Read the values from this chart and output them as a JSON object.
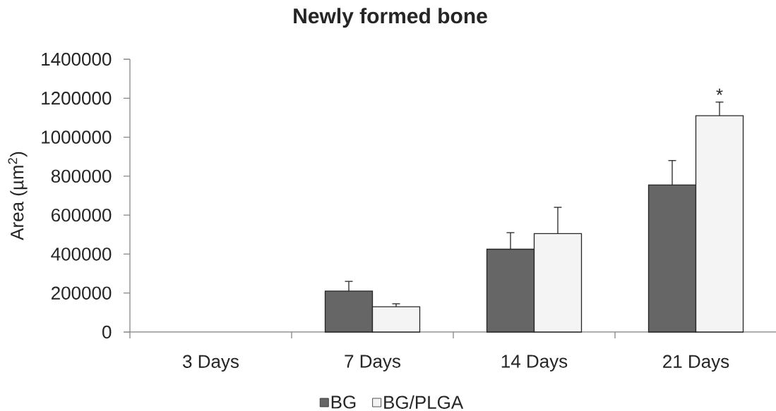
{
  "chart_data": {
    "type": "bar",
    "title": "Newly formed bone",
    "ylabel": "Area (µm$^{2}$)",
    "categories": [
      "3 Days",
      "7 Days",
      "14 Days",
      "21 Days"
    ],
    "series": [
      {
        "name": "BG",
        "color": "#666666",
        "values": [
          null,
          210000,
          425000,
          755000
        ],
        "errors": [
          null,
          [
            210000,
            260000
          ],
          [
            425000,
            510000
          ],
          [
            755000,
            880000
          ]
        ]
      },
      {
        "name": "BG/PLGA",
        "color": "#f4f4f4",
        "values": [
          null,
          130000,
          505000,
          1110000
        ],
        "errors": [
          null,
          [
            130000,
            145000
          ],
          [
            505000,
            640000
          ],
          [
            1110000,
            1180000
          ]
        ]
      }
    ],
    "ylim": [
      0,
      1400000
    ],
    "yticks": [
      0,
      200000,
      400000,
      600000,
      800000,
      1000000,
      1200000,
      1400000
    ],
    "legend": "bottom",
    "annotations": [
      "*"
    ]
  }
}
